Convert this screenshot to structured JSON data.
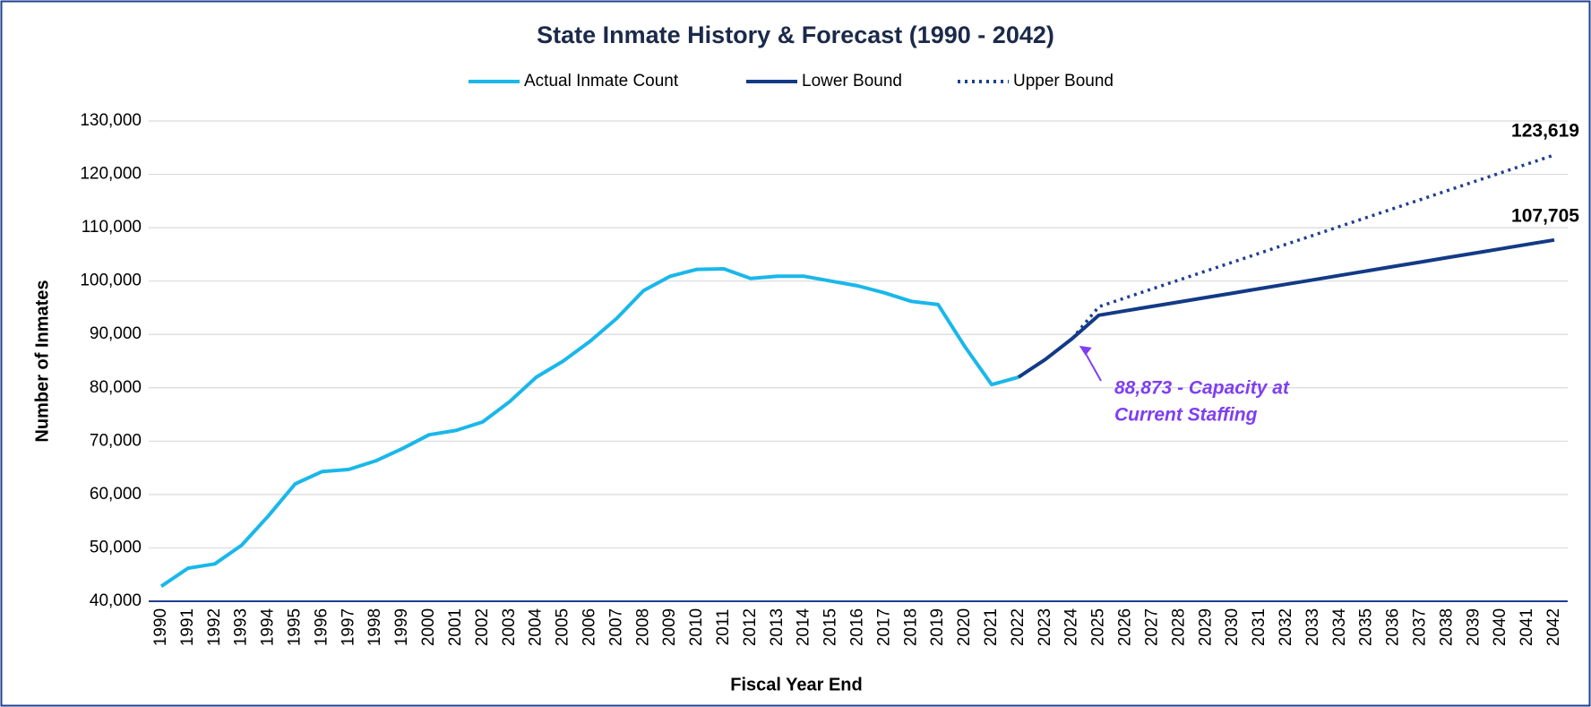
{
  "chart_data": {
    "type": "line",
    "title": "State Inmate History & Forecast (1990 - 2042)",
    "x_label": "Fiscal Year End",
    "y_label": "Number of Inmates",
    "categories": [
      "1990",
      "1991",
      "1992",
      "1993",
      "1994",
      "1995",
      "1996",
      "1997",
      "1998",
      "1999",
      "2000",
      "2001",
      "2002",
      "2003",
      "2004",
      "2005",
      "2006",
      "2007",
      "2008",
      "2009",
      "2010",
      "2011",
      "2012",
      "2013",
      "2014",
      "2015",
      "2016",
      "2017",
      "2018",
      "2019",
      "2020",
      "2021",
      "2022",
      "2023",
      "2024",
      "2025",
      "2026",
      "2027",
      "2028",
      "2029",
      "2030",
      "2031",
      "2032",
      "2033",
      "2034",
      "2035",
      "2036",
      "2037",
      "2038",
      "2039",
      "2040",
      "2041",
      "2042"
    ],
    "series": [
      {
        "name": "Actual Inmate Count",
        "color": "#1ab7ea",
        "dash": "solid",
        "values": [
          42800,
          46200,
          47000,
          50500,
          56000,
          62000,
          64300,
          64700,
          66300,
          68600,
          71200,
          72000,
          73600,
          77400,
          82000,
          85000,
          88700,
          93000,
          98200,
          100900,
          102200,
          102300,
          100500,
          100900,
          100900,
          100000,
          99100,
          97800,
          96200,
          95600,
          87700,
          80600,
          82000,
          null,
          null,
          null,
          null,
          null,
          null,
          null,
          null,
          null,
          null,
          null,
          null,
          null,
          null,
          null,
          null,
          null,
          null,
          null,
          null
        ]
      },
      {
        "name": "Lower Bound",
        "color": "#123a86",
        "dash": "solid",
        "values": [
          null,
          null,
          null,
          null,
          null,
          null,
          null,
          null,
          null,
          null,
          null,
          null,
          null,
          null,
          null,
          null,
          null,
          null,
          null,
          null,
          null,
          null,
          null,
          null,
          null,
          null,
          null,
          null,
          null,
          null,
          null,
          null,
          82000,
          85300,
          89200,
          93600,
          94430,
          95259,
          96089,
          96919,
          97748,
          98578,
          99408,
          100237,
          101067,
          101897,
          102727,
          103556,
          104386,
          105216,
          106045,
          106875,
          107705
        ],
        "value_labels": [
          null,
          null,
          null,
          null,
          null,
          null,
          null,
          null,
          null,
          null,
          null,
          null,
          null,
          null,
          null,
          null,
          null,
          null,
          null,
          null,
          null,
          null,
          null,
          null,
          null,
          null,
          null,
          null,
          null,
          null,
          null,
          null,
          null,
          null,
          null,
          null,
          null,
          null,
          null,
          null,
          null,
          null,
          null,
          null,
          null,
          null,
          null,
          null,
          null,
          null,
          null,
          null,
          "107,705"
        ]
      },
      {
        "name": "Upper Bound",
        "color": "#1f3f8f",
        "dash": "dotted",
        "values": [
          null,
          null,
          null,
          null,
          null,
          null,
          null,
          null,
          null,
          null,
          null,
          null,
          null,
          null,
          null,
          null,
          null,
          null,
          null,
          null,
          null,
          null,
          null,
          null,
          null,
          null,
          null,
          null,
          null,
          null,
          null,
          null,
          null,
          null,
          89200,
          95200,
          96872,
          98544,
          100216,
          101888,
          103560,
          105232,
          106904,
          108576,
          110248,
          111920,
          113592,
          115264,
          116936,
          118608,
          120280,
          121952,
          123619
        ],
        "value_labels": [
          null,
          null,
          null,
          null,
          null,
          null,
          null,
          null,
          null,
          null,
          null,
          null,
          null,
          null,
          null,
          null,
          null,
          null,
          null,
          null,
          null,
          null,
          null,
          null,
          null,
          null,
          null,
          null,
          null,
          null,
          null,
          null,
          null,
          null,
          null,
          null,
          null,
          null,
          null,
          null,
          null,
          null,
          null,
          null,
          null,
          null,
          null,
          null,
          null,
          null,
          null,
          null,
          "123,619"
        ]
      }
    ],
    "annotation": {
      "lines": [
        "88,873 - Capacity at",
        "Current Staffing"
      ],
      "value": 88873,
      "category": "2024",
      "color": "#7e3ff2"
    },
    "ylim": [
      40000,
      130000
    ],
    "yticks": [
      {
        "value": 40000,
        "label": "40,000"
      },
      {
        "value": 50000,
        "label": "50,000"
      },
      {
        "value": 60000,
        "label": "60,000"
      },
      {
        "value": 70000,
        "label": "70,000"
      },
      {
        "value": 80000,
        "label": "80,000"
      },
      {
        "value": 90000,
        "label": "90,000"
      },
      {
        "value": 100000,
        "label": "100,000"
      },
      {
        "value": 110000,
        "label": "110,000"
      },
      {
        "value": 120000,
        "label": "120,000"
      },
      {
        "value": 130000,
        "label": "130,000"
      }
    ],
    "grid": true,
    "legend": "top"
  }
}
